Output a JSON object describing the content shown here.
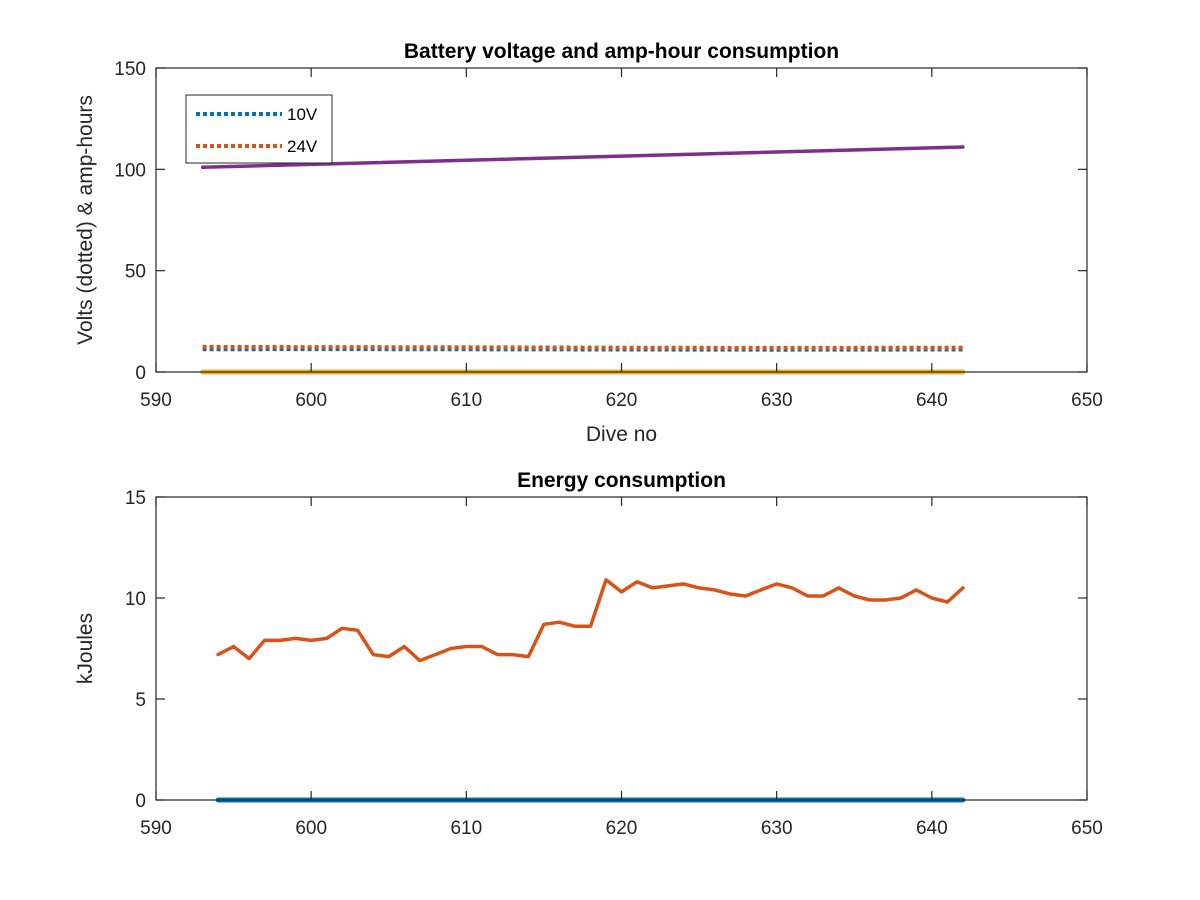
{
  "chart_data": [
    {
      "type": "line",
      "title": "Battery voltage and amp-hour consumption",
      "xlabel": "Dive no",
      "ylabel": "Volts (dotted) & amp-hours",
      "xlim": [
        590,
        650
      ],
      "ylim": [
        0,
        150
      ],
      "xticks": [
        590,
        600,
        610,
        620,
        630,
        640,
        650
      ],
      "yticks": [
        0,
        50,
        100,
        150
      ],
      "grid": false,
      "legend": {
        "position": "top-left",
        "entries": [
          "10V",
          "24V"
        ]
      },
      "series": [
        {
          "name": "10V",
          "style": "dotted",
          "color": "#0072BD",
          "x": [
            593,
            600,
            610,
            620,
            630,
            642
          ],
          "y": [
            11.2,
            11.3,
            11.2,
            11.1,
            11.0,
            11.1
          ]
        },
        {
          "name": "24V",
          "style": "dotted",
          "color": "#D95319",
          "x": [
            593,
            600,
            610,
            620,
            630,
            642
          ],
          "y": [
            12.4,
            12.3,
            12.2,
            12.0,
            11.9,
            12.0
          ]
        },
        {
          "style": "solid",
          "color": "#EDB120",
          "x": [
            593,
            642
          ],
          "y": [
            0,
            0
          ]
        },
        {
          "style": "solid",
          "color": "#7E2F8E",
          "x": [
            593,
            642
          ],
          "y": [
            101,
            111
          ]
        }
      ]
    },
    {
      "type": "line",
      "title": "Energy consumption",
      "xlabel": "",
      "ylabel": "kJoules",
      "xlim": [
        590,
        650
      ],
      "ylim": [
        0,
        15
      ],
      "xticks": [
        590,
        600,
        610,
        620,
        630,
        640,
        650
      ],
      "yticks": [
        0,
        5,
        10,
        15
      ],
      "grid": false,
      "series": [
        {
          "style": "solid",
          "color": "#D95319",
          "x": [
            594,
            595,
            596,
            597,
            598,
            599,
            600,
            601,
            602,
            603,
            604,
            605,
            606,
            607,
            608,
            609,
            610,
            611,
            612,
            613,
            614,
            615,
            616,
            617,
            618,
            619,
            620,
            621,
            622,
            623,
            624,
            625,
            626,
            627,
            628,
            629,
            630,
            631,
            632,
            633,
            634,
            635,
            636,
            637,
            638,
            639,
            640,
            641,
            642
          ],
          "y": [
            7.2,
            7.6,
            7.0,
            7.9,
            7.9,
            8.0,
            7.9,
            8.0,
            8.5,
            8.4,
            7.2,
            7.1,
            7.6,
            6.9,
            7.2,
            7.5,
            7.6,
            7.6,
            7.2,
            7.2,
            7.1,
            8.7,
            8.8,
            8.6,
            8.6,
            10.9,
            10.3,
            10.8,
            10.5,
            10.6,
            10.7,
            10.5,
            10.4,
            10.2,
            10.1,
            10.4,
            10.7,
            10.5,
            10.1,
            10.1,
            10.5,
            10.1,
            9.9,
            9.9,
            10.0,
            10.4,
            10.0,
            9.8,
            10.5
          ]
        },
        {
          "style": "solid",
          "color": "#0072BD",
          "x": [
            594,
            642
          ],
          "y": [
            0,
            0
          ]
        }
      ]
    }
  ]
}
